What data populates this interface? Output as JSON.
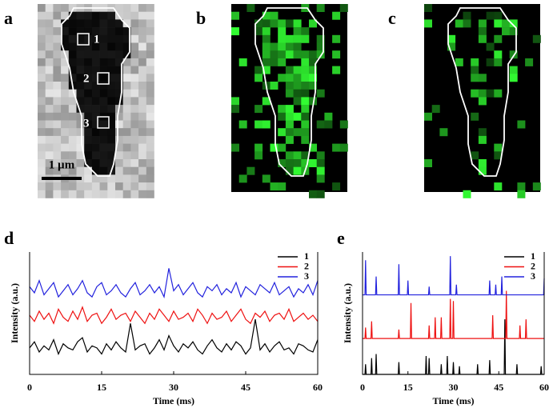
{
  "image_panels": [
    {
      "label": "a",
      "roi_labels": [
        "1",
        "2",
        "3"
      ],
      "scale_bar": "1 µm"
    },
    {
      "label": "b"
    },
    {
      "label": "c"
    }
  ],
  "chart_data": [
    {
      "type": "line",
      "panel_label": "d",
      "xlabel": "Time (ms)",
      "ylabel": "Intensity (a.u.)",
      "x": [
        0,
        1,
        2,
        3,
        4,
        5,
        6,
        7,
        8,
        9,
        10,
        11,
        12,
        13,
        14,
        15,
        16,
        17,
        18,
        19,
        20,
        21,
        22,
        23,
        24,
        25,
        26,
        27,
        28,
        29,
        30,
        31,
        32,
        33,
        34,
        35,
        36,
        37,
        38,
        39,
        40,
        41,
        42,
        43,
        44,
        45,
        46,
        47,
        48,
        49,
        50,
        51,
        52,
        53,
        54,
        55,
        56,
        57,
        58,
        59,
        60
      ],
      "xlim": [
        0,
        60
      ],
      "xticks": [
        0,
        15,
        30,
        45,
        60
      ],
      "ylim": [
        0,
        6
      ],
      "legend": "upper right",
      "series": [
        {
          "name": "1",
          "color": "#000000",
          "values": [
            1.3,
            1.6,
            1.1,
            1.4,
            1.2,
            1.7,
            1.0,
            1.5,
            1.3,
            1.2,
            1.6,
            1.8,
            1.1,
            1.4,
            1.3,
            1.0,
            1.5,
            1.2,
            1.6,
            1.3,
            1.1,
            2.5,
            1.2,
            1.4,
            1.5,
            1.0,
            1.3,
            1.7,
            1.2,
            1.9,
            1.4,
            1.1,
            1.5,
            1.3,
            1.6,
            1.2,
            1.0,
            1.4,
            1.7,
            1.3,
            1.1,
            1.5,
            1.2,
            1.6,
            1.4,
            1.0,
            1.3,
            2.7,
            1.2,
            1.5,
            1.1,
            1.4,
            1.6,
            1.2,
            1.3,
            1.0,
            1.5,
            1.4,
            1.2,
            1.1,
            1.7
          ]
        },
        {
          "name": "2",
          "color": "#ee1111",
          "values": [
            2.9,
            2.6,
            3.1,
            2.7,
            3.0,
            2.5,
            3.2,
            2.8,
            2.6,
            3.1,
            2.7,
            3.3,
            2.6,
            2.9,
            3.0,
            2.5,
            2.8,
            3.2,
            2.7,
            2.9,
            3.0,
            2.6,
            3.1,
            2.8,
            2.5,
            3.0,
            2.7,
            3.2,
            2.9,
            2.6,
            3.1,
            2.7,
            2.8,
            3.0,
            2.6,
            3.2,
            2.9,
            2.5,
            3.0,
            2.7,
            2.8,
            3.1,
            2.6,
            2.9,
            3.2,
            2.7,
            2.5,
            3.0,
            2.8,
            3.1,
            2.6,
            2.9,
            3.0,
            2.7,
            3.2,
            2.6,
            2.8,
            3.0,
            2.7,
            2.9,
            2.6
          ]
        },
        {
          "name": "3",
          "color": "#2222dd",
          "values": [
            4.3,
            4.0,
            4.6,
            3.9,
            4.2,
            4.5,
            3.8,
            4.1,
            4.4,
            3.9,
            4.2,
            4.6,
            4.0,
            3.8,
            4.3,
            4.5,
            3.9,
            4.1,
            4.4,
            4.0,
            3.8,
            4.2,
            4.5,
            3.9,
            4.1,
            4.4,
            4.0,
            4.3,
            3.8,
            5.2,
            4.1,
            4.4,
            3.9,
            4.2,
            4.5,
            4.0,
            3.8,
            4.3,
            4.1,
            4.4,
            3.9,
            4.2,
            4.0,
            4.5,
            3.8,
            4.3,
            4.1,
            3.9,
            4.4,
            4.2,
            4.0,
            4.5,
            3.9,
            4.1,
            4.3,
            3.8,
            4.2,
            4.0,
            4.4,
            3.9,
            4.6
          ]
        }
      ]
    },
    {
      "type": "line",
      "panel_label": "e",
      "xlabel": "Time (ms)",
      "ylabel": "Intensity (a.u.)",
      "xlim": [
        0,
        60
      ],
      "xticks": [
        0,
        15,
        30,
        45,
        60
      ],
      "ylim": [
        0,
        6
      ],
      "legend": "upper right",
      "series": [
        {
          "name": "1",
          "color": "#000000",
          "x": [
            0,
            0.8,
            1,
            1.2,
            2.8,
            3,
            3.2,
            4.3,
            4.5,
            4.7,
            11.8,
            12,
            12.2,
            20.8,
            21,
            21.2,
            21.8,
            22,
            22.2,
            25.8,
            26,
            26.2,
            27.8,
            28,
            28.2,
            29.8,
            30,
            30.2,
            31.8,
            32,
            32.2,
            37.8,
            38,
            38.2,
            41.8,
            42,
            42.2,
            46.8,
            47,
            47.2,
            50.8,
            51,
            51.2,
            58.8,
            59,
            59.2,
            60
          ],
          "values": [
            0,
            0,
            0.5,
            0,
            0,
            0.8,
            0,
            0,
            1,
            0,
            0,
            0.6,
            0,
            0,
            0.9,
            0,
            0,
            0.8,
            0,
            0,
            0.5,
            0,
            0,
            0.9,
            0,
            0,
            0.6,
            0,
            0,
            0.4,
            0,
            0,
            0.5,
            0,
            0,
            0.7,
            0,
            0,
            2.7,
            0,
            0,
            0.5,
            0,
            0,
            0.4,
            0,
            0
          ]
        },
        {
          "name": "2",
          "color": "#ee1111",
          "x": [
            0,
            0.8,
            1,
            1.2,
            2.8,
            3,
            3.2,
            11.8,
            12,
            12.2,
            15.8,
            16,
            16.2,
            21.8,
            22,
            22.2,
            23.8,
            24,
            24.2,
            25.8,
            26,
            26.2,
            28.8,
            29,
            29.2,
            29.8,
            30,
            30.2,
            42.8,
            43,
            43.2,
            47.3,
            47.5,
            47.7,
            51.8,
            52,
            52.2,
            53.8,
            54,
            54.2,
            60
          ],
          "values": [
            1.76,
            1.76,
            2.3,
            1.76,
            1.76,
            2.6,
            1.76,
            1.76,
            2.2,
            1.76,
            1.76,
            3.5,
            1.76,
            1.76,
            2.4,
            1.76,
            1.76,
            2.8,
            1.76,
            1.76,
            2.8,
            1.76,
            1.76,
            3.7,
            1.76,
            1.76,
            3.6,
            1.76,
            1.76,
            2.9,
            1.76,
            1.76,
            4.1,
            1.76,
            1.76,
            2.4,
            1.76,
            1.76,
            2.7,
            1.76,
            1.76
          ]
        },
        {
          "name": "3",
          "color": "#2222dd",
          "x": [
            0,
            0.8,
            1,
            1.2,
            4.3,
            4.5,
            4.7,
            11.8,
            12,
            12.2,
            14.8,
            15,
            15.2,
            21.8,
            22,
            22.2,
            28.8,
            29,
            29.2,
            30.8,
            31,
            31.2,
            41.8,
            42,
            42.2,
            43.8,
            44,
            44.2,
            45.8,
            46,
            46.2,
            59.8,
            60
          ],
          "values": [
            3.9,
            3.9,
            5.6,
            3.9,
            3.9,
            4.8,
            3.9,
            3.9,
            5.4,
            3.9,
            3.9,
            4.6,
            3.9,
            3.9,
            4.3,
            3.9,
            3.9,
            5.8,
            3.9,
            3.9,
            4.4,
            3.9,
            3.9,
            4.6,
            3.9,
            3.9,
            4.4,
            3.9,
            3.9,
            4.8,
            3.9,
            3.9,
            4.7
          ]
        }
      ]
    }
  ]
}
